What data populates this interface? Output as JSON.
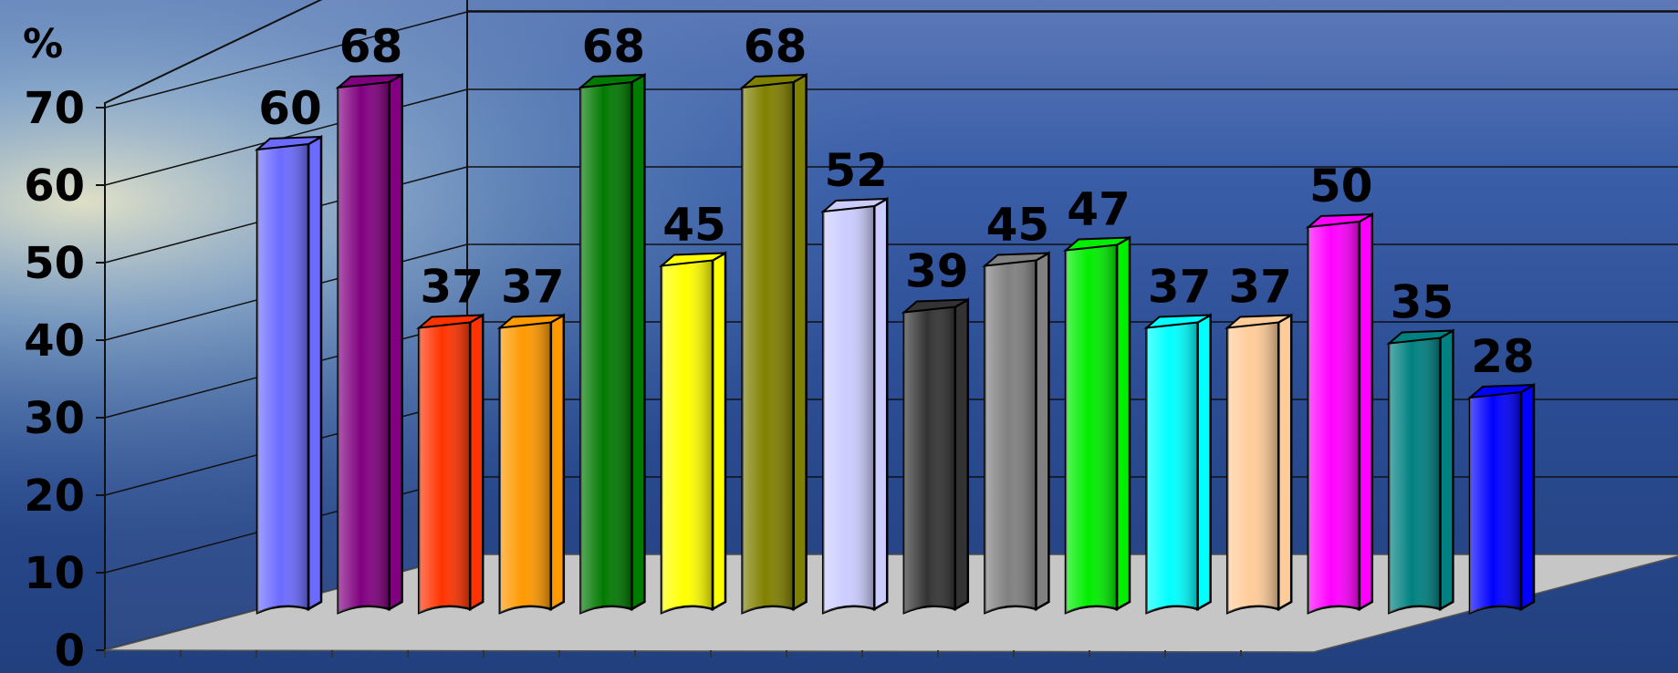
{
  "chart_data": {
    "type": "bar",
    "title": "",
    "xlabel": "",
    "ylabel": "%",
    "ylim": [
      0,
      70
    ],
    "yticks": [
      0,
      10,
      20,
      30,
      40,
      50,
      60,
      70
    ],
    "grid": true,
    "values": [
      60,
      68,
      37,
      37,
      68,
      45,
      68,
      52,
      39,
      45,
      47,
      37,
      37,
      50,
      35,
      28
    ],
    "colors": [
      "#6b6bff",
      "#800080",
      "#ff3300",
      "#ff9900",
      "#007a00",
      "#ffff00",
      "#808000",
      "#ccccff",
      "#333333",
      "#808080",
      "#00ee00",
      "#00ffff",
      "#ffcc99",
      "#ff00ff",
      "#008080",
      "#0000ff"
    ]
  }
}
